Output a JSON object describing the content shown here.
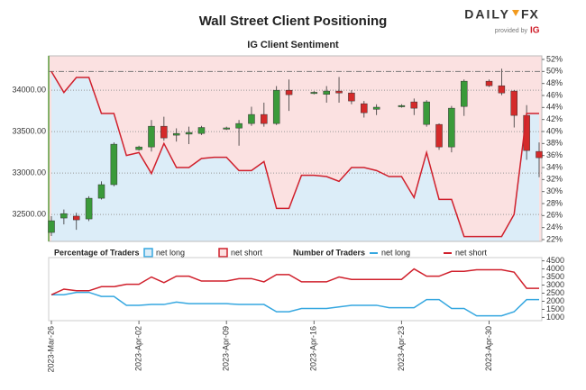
{
  "header": {
    "title": "Wall Street Client Positioning",
    "subtitle": "IG Client Sentiment",
    "logo_main": "DAILY",
    "logo_accent": "FX",
    "provided_by": "provided by",
    "provider": "IG"
  },
  "chart_data": [
    {
      "type": "candlestick",
      "up_color": "#3a9a3a",
      "down_color": "#d42a2a",
      "xlim": [
        "2023-03-26",
        "2023-05-04"
      ],
      "x": [
        "2023-03-26",
        "2023-03-27",
        "2023-03-28",
        "2023-03-29",
        "2023-03-30",
        "2023-03-31",
        "2023-04-02",
        "2023-04-03",
        "2023-04-04",
        "2023-04-05",
        "2023-04-06",
        "2023-04-07",
        "2023-04-09",
        "2023-04-10",
        "2023-04-11",
        "2023-04-12",
        "2023-04-13",
        "2023-04-14",
        "2023-04-16",
        "2023-04-17",
        "2023-04-18",
        "2023-04-19",
        "2023-04-20",
        "2023-04-21",
        "2023-04-23",
        "2023-04-24",
        "2023-04-25",
        "2023-04-26",
        "2023-04-27",
        "2023-04-28",
        "2023-04-30",
        "2023-05-01",
        "2023-05-02",
        "2023-05-03",
        "2023-05-04"
      ],
      "open": [
        32283,
        32457,
        32480,
        32446,
        32696,
        32860,
        33283,
        33315,
        33565,
        33457,
        33470,
        33478,
        33530,
        33543,
        33598,
        33707,
        33598,
        34000,
        33960,
        33950,
        33990,
        33967,
        33837,
        33770,
        33800,
        33859,
        33587,
        33587,
        33315,
        33804,
        34109,
        34054,
        33990,
        33696,
        33261
      ],
      "high": [
        32480,
        32560,
        32520,
        32720,
        32900,
        33370,
        33330,
        33640,
        33680,
        33540,
        33560,
        33570,
        33560,
        33640,
        33800,
        33850,
        34050,
        34130,
        33990,
        34050,
        34160,
        34000,
        33870,
        33830,
        33830,
        33900,
        33880,
        33600,
        33810,
        34130,
        34130,
        34260,
        34000,
        33820,
        33370
      ],
      "low": [
        32240,
        32380,
        32315,
        32420,
        32680,
        32840,
        33270,
        33260,
        33390,
        33380,
        33350,
        33460,
        33520,
        33330,
        33570,
        33560,
        33580,
        33750,
        33950,
        33850,
        33850,
        33830,
        33670,
        33700,
        33790,
        33700,
        33560,
        33280,
        33250,
        33690,
        34040,
        33940,
        33550,
        33160,
        32950
      ],
      "close": [
        32424,
        32510,
        32435,
        32696,
        32860,
        33348,
        33315,
        33565,
        33424,
        33478,
        33490,
        33550,
        33545,
        33598,
        33707,
        33598,
        34000,
        33946,
        33975,
        33990,
        33967,
        33870,
        33728,
        33795,
        33815,
        33783,
        33859,
        33315,
        33783,
        34109,
        34054,
        33967,
        33696,
        33272,
        33185
      ],
      "ylim": [
        32175,
        34415
      ],
      "yticks": [
        {
          "value": 32500,
          "label": "32500.00"
        },
        {
          "value": 33000,
          "label": "33000.00"
        },
        {
          "value": 33500,
          "label": "33500.00"
        },
        {
          "value": 34000,
          "label": "34000.00"
        }
      ],
      "grid": true,
      "sentiment_x": [
        "2023-03-26",
        "2023-03-27",
        "2023-03-28",
        "2023-03-29",
        "2023-03-30",
        "2023-03-31",
        "2023-04-01",
        "2023-04-02",
        "2023-04-03",
        "2023-04-04",
        "2023-04-05",
        "2023-04-06",
        "2023-04-07",
        "2023-04-08",
        "2023-04-09",
        "2023-04-10",
        "2023-04-11",
        "2023-04-12",
        "2023-04-13",
        "2023-04-14",
        "2023-04-15",
        "2023-04-16",
        "2023-04-17",
        "2023-04-18",
        "2023-04-19",
        "2023-04-20",
        "2023-04-21",
        "2023-04-22",
        "2023-04-23",
        "2023-04-24",
        "2023-04-25",
        "2023-04-26",
        "2023-04-27",
        "2023-04-28",
        "2023-04-29",
        "2023-04-30",
        "2023-05-01",
        "2023-05-02",
        "2023-05-03",
        "2023-05-04"
      ],
      "y2_values": [
        50,
        46.5,
        49,
        49,
        43,
        43,
        36,
        36.5,
        33,
        38,
        34,
        34,
        35.5,
        35.7,
        35.7,
        33.5,
        33.5,
        35,
        27.2,
        27.2,
        32.7,
        32.7,
        32.5,
        31.7,
        34,
        34,
        33.5,
        32.5,
        32.5,
        29,
        36.5,
        28.7,
        28.7,
        22.5,
        22.5,
        22.5,
        22.5,
        26.2,
        43,
        43
      ],
      "y2_line_color": "#d0202c",
      "y2lim": [
        21.7,
        52.6
      ],
      "y2ticks": [
        {
          "value": 22,
          "label": "22%"
        },
        {
          "value": 24,
          "label": "24%"
        },
        {
          "value": 26,
          "label": "26%"
        },
        {
          "value": 28,
          "label": "28%"
        },
        {
          "value": 30,
          "label": "30%"
        },
        {
          "value": 32,
          "label": "32%"
        },
        {
          "value": 34,
          "label": "34%"
        },
        {
          "value": 36,
          "label": "36%"
        },
        {
          "value": 38,
          "label": "38%"
        },
        {
          "value": 40,
          "label": "40%"
        },
        {
          "value": 42,
          "label": "42%"
        },
        {
          "value": 44,
          "label": "44%"
        },
        {
          "value": 46,
          "label": "46%"
        },
        {
          "value": 48,
          "label": "48%"
        },
        {
          "value": 50,
          "label": "50%"
        },
        {
          "value": 52,
          "label": "52%"
        }
      ],
      "y2_reference_lines": [
        50
      ],
      "legend_title": "Percentage of Traders",
      "legend": [
        {
          "name": "net long",
          "color": "#35a7e0",
          "fill": "#dcedf8"
        },
        {
          "name": "net short",
          "color": "#d0202c",
          "fill": "#fbe1e1"
        }
      ]
    },
    {
      "type": "line",
      "legend_title": "Number of Traders",
      "xlim": [
        "2023-03-26",
        "2023-05-04"
      ],
      "x": [
        "2023-03-26",
        "2023-03-27",
        "2023-03-28",
        "2023-03-29",
        "2023-03-30",
        "2023-03-31",
        "2023-04-01",
        "2023-04-02",
        "2023-04-03",
        "2023-04-04",
        "2023-04-05",
        "2023-04-06",
        "2023-04-07",
        "2023-04-08",
        "2023-04-09",
        "2023-04-10",
        "2023-04-11",
        "2023-04-12",
        "2023-04-13",
        "2023-04-14",
        "2023-04-15",
        "2023-04-16",
        "2023-04-17",
        "2023-04-18",
        "2023-04-19",
        "2023-04-20",
        "2023-04-21",
        "2023-04-22",
        "2023-04-23",
        "2023-04-24",
        "2023-04-25",
        "2023-04-26",
        "2023-04-27",
        "2023-04-28",
        "2023-04-29",
        "2023-04-30",
        "2023-05-01",
        "2023-05-02",
        "2023-05-03",
        "2023-05-04"
      ],
      "series": [
        {
          "name": "net long",
          "color": "#35a7e0",
          "values": [
            2400,
            2400,
            2550,
            2550,
            2300,
            2300,
            1750,
            1750,
            1800,
            1800,
            1950,
            1850,
            1850,
            1850,
            1850,
            1800,
            1800,
            1800,
            1350,
            1350,
            1550,
            1550,
            1550,
            1650,
            1750,
            1750,
            1750,
            1600,
            1600,
            1600,
            2100,
            2100,
            1550,
            1550,
            1100,
            1100,
            1100,
            1350,
            2100,
            2100
          ]
        },
        {
          "name": "net short",
          "color": "#d0202c",
          "values": [
            2400,
            2750,
            2650,
            2650,
            2900,
            2900,
            3050,
            3050,
            3500,
            3150,
            3550,
            3550,
            3250,
            3250,
            3250,
            3400,
            3400,
            3200,
            3650,
            3650,
            3200,
            3200,
            3200,
            3500,
            3350,
            3350,
            3350,
            3350,
            3350,
            4000,
            3550,
            3550,
            3850,
            3850,
            3950,
            3950,
            3950,
            3800,
            2800,
            2800
          ]
        }
      ],
      "ylim": [
        800,
        4700
      ],
      "yticks": [
        1000,
        1500,
        2000,
        2500,
        3000,
        3500,
        4000,
        4500
      ],
      "xticks": [
        {
          "value": "2023-03-26",
          "label": "2023-Mar-26"
        },
        {
          "value": "2023-04-02",
          "label": "2023-Apr-02"
        },
        {
          "value": "2023-04-09",
          "label": "2023-Apr-09"
        },
        {
          "value": "2023-04-16",
          "label": "2023-Apr-16"
        },
        {
          "value": "2023-04-23",
          "label": "2023-Apr-23"
        },
        {
          "value": "2023-04-30",
          "label": "2023-Apr-30"
        }
      ]
    }
  ]
}
